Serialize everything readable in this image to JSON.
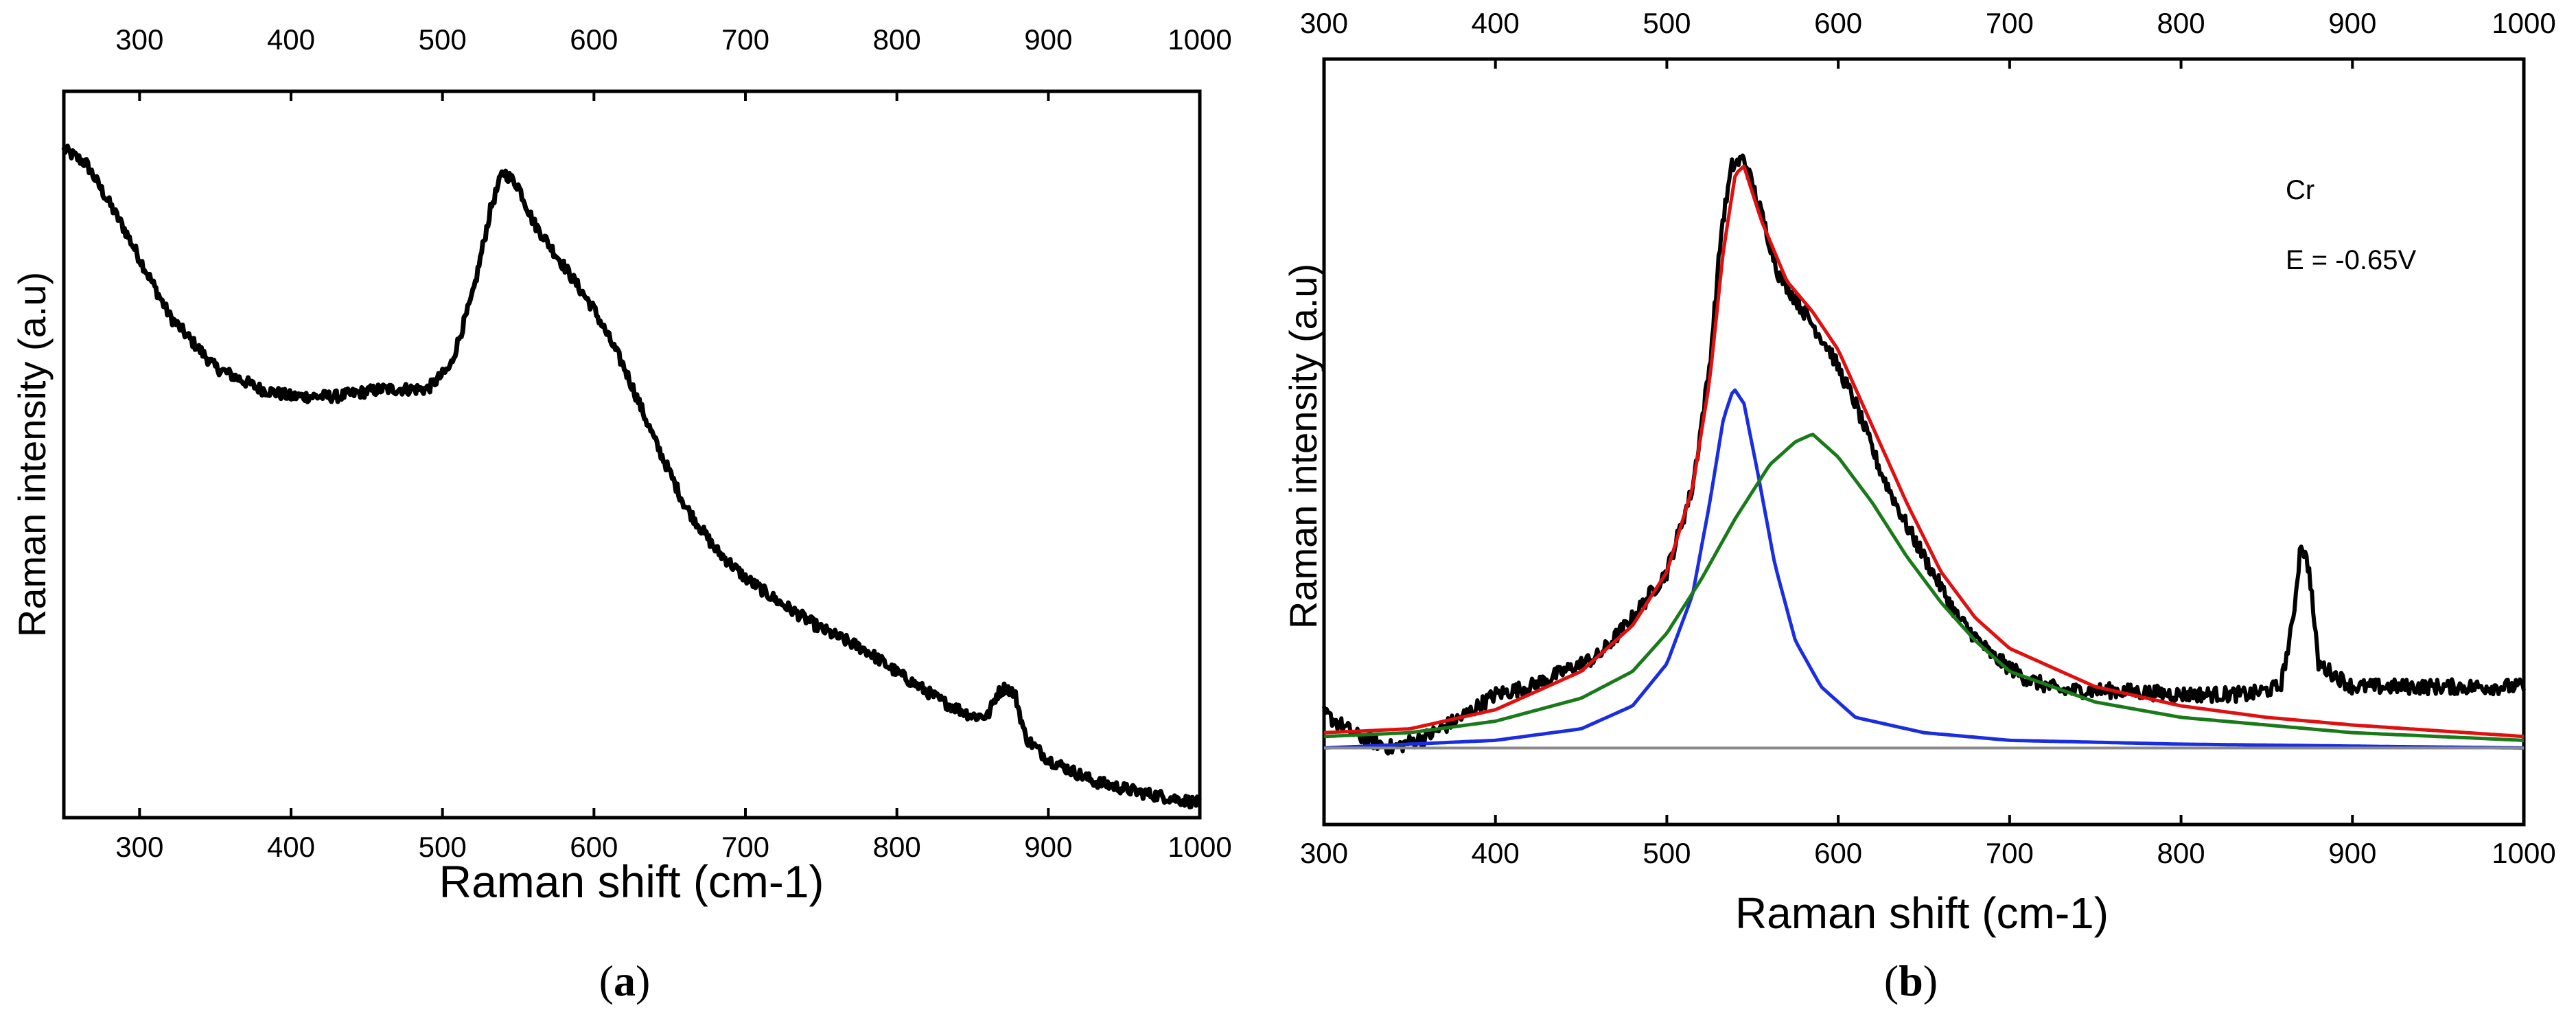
{
  "colors": {
    "spectrum": "#000000",
    "fit_total": "#e01010",
    "peak_540": "#1a2ee0",
    "peak_585": "#1a7a1a",
    "baseline": "#8a8a8a"
  },
  "chart_data": [
    {
      "id": "a",
      "type": "line",
      "panel_label": "a",
      "xlabel": "Raman shift (cm-1)",
      "ylabel": "Raman intensity (a.u)",
      "xlim": [
        250,
        1000
      ],
      "ylim": [
        0,
        1
      ],
      "x_ticks_bottom": [
        300,
        400,
        500,
        600,
        700,
        800,
        900,
        1000
      ],
      "x_ticks_top": [
        300,
        400,
        500,
        600,
        700,
        800,
        900,
        1000
      ],
      "yticks_shown": false,
      "series": [
        {
          "name": "Raman spectrum",
          "color_key": "spectrum",
          "width": 7,
          "noise": 0.008,
          "points": [
            [
              250,
              0.92
            ],
            [
              265,
              0.9
            ],
            [
              290,
              0.81
            ],
            [
              320,
              0.69
            ],
            [
              350,
              0.62
            ],
            [
              380,
              0.59
            ],
            [
              400,
              0.58
            ],
            [
              430,
              0.58
            ],
            [
              460,
              0.59
            ],
            [
              490,
              0.59
            ],
            [
              505,
              0.62
            ],
            [
              520,
              0.72
            ],
            [
              532,
              0.84
            ],
            [
              540,
              0.89
            ],
            [
              550,
              0.87
            ],
            [
              560,
              0.82
            ],
            [
              580,
              0.76
            ],
            [
              600,
              0.7
            ],
            [
              620,
              0.62
            ],
            [
              640,
              0.52
            ],
            [
              660,
              0.43
            ],
            [
              680,
              0.37
            ],
            [
              700,
              0.33
            ],
            [
              720,
              0.3
            ],
            [
              750,
              0.26
            ],
            [
              780,
              0.23
            ],
            [
              800,
              0.2
            ],
            [
              830,
              0.16
            ],
            [
              850,
              0.14
            ],
            [
              860,
              0.14
            ],
            [
              866,
              0.17
            ],
            [
              872,
              0.18
            ],
            [
              878,
              0.17
            ],
            [
              885,
              0.11
            ],
            [
              900,
              0.08
            ],
            [
              930,
              0.05
            ],
            [
              960,
              0.035
            ],
            [
              1000,
              0.02
            ]
          ]
        }
      ]
    },
    {
      "id": "b",
      "type": "line",
      "panel_label": "b",
      "xlabel": "Raman shift (cm-1)",
      "ylabel": "Raman intensity (a.u)",
      "xlim": [
        300,
        1000
      ],
      "ylim": [
        0,
        1
      ],
      "x_ticks_bottom": [
        300,
        400,
        500,
        600,
        700,
        800,
        900,
        1000
      ],
      "x_ticks_top": [
        300,
        400,
        500,
        600,
        700,
        800,
        900,
        1000
      ],
      "yticks_shown": false,
      "annotations": [
        "Cr",
        "E = -0.65V"
      ],
      "series": [
        {
          "name": "Raman spectrum",
          "color_key": "spectrum",
          "width": 6,
          "noise": 0.01,
          "points": [
            [
              300,
              0.145
            ],
            [
              320,
              0.115
            ],
            [
              340,
              0.1
            ],
            [
              360,
              0.115
            ],
            [
              380,
              0.14
            ],
            [
              400,
              0.17
            ],
            [
              420,
              0.18
            ],
            [
              440,
              0.2
            ],
            [
              460,
              0.22
            ],
            [
              480,
              0.27
            ],
            [
              500,
              0.33
            ],
            [
              515,
              0.44
            ],
            [
              525,
              0.6
            ],
            [
              532,
              0.78
            ],
            [
              538,
              0.86
            ],
            [
              545,
              0.87
            ],
            [
              555,
              0.8
            ],
            [
              565,
              0.72
            ],
            [
              580,
              0.67
            ],
            [
              595,
              0.62
            ],
            [
              610,
              0.55
            ],
            [
              625,
              0.46
            ],
            [
              640,
              0.39
            ],
            [
              655,
              0.33
            ],
            [
              670,
              0.27
            ],
            [
              690,
              0.22
            ],
            [
              710,
              0.19
            ],
            [
              730,
              0.175
            ],
            [
              760,
              0.175
            ],
            [
              800,
              0.17
            ],
            [
              840,
              0.17
            ],
            [
              858,
              0.18
            ],
            [
              865,
              0.26
            ],
            [
              870,
              0.37
            ],
            [
              875,
              0.33
            ],
            [
              880,
              0.21
            ],
            [
              900,
              0.18
            ],
            [
              940,
              0.18
            ],
            [
              1000,
              0.18
            ]
          ]
        },
        {
          "name": "Total fit",
          "color_key": "fit_total",
          "width": 5,
          "points": [
            [
              300,
              0.12
            ],
            [
              350,
              0.125
            ],
            [
              400,
              0.15
            ],
            [
              450,
              0.2
            ],
            [
              480,
              0.26
            ],
            [
              500,
              0.33
            ],
            [
              515,
              0.44
            ],
            [
              525,
              0.58
            ],
            [
              533,
              0.75
            ],
            [
              540,
              0.85
            ],
            [
              545,
              0.86
            ],
            [
              555,
              0.79
            ],
            [
              570,
              0.71
            ],
            [
              585,
              0.67
            ],
            [
              600,
              0.62
            ],
            [
              620,
              0.52
            ],
            [
              640,
              0.42
            ],
            [
              660,
              0.33
            ],
            [
              680,
              0.27
            ],
            [
              700,
              0.23
            ],
            [
              750,
              0.18
            ],
            [
              800,
              0.155
            ],
            [
              850,
              0.14
            ],
            [
              900,
              0.13
            ],
            [
              1000,
              0.115
            ]
          ]
        },
        {
          "name": "Lorentzian peak ~540 cm-1",
          "color_key": "peak_540",
          "width": 5,
          "points": [
            [
              300,
              0.1
            ],
            [
              350,
              0.105
            ],
            [
              400,
              0.11
            ],
            [
              450,
              0.125
            ],
            [
              480,
              0.155
            ],
            [
              500,
              0.21
            ],
            [
              515,
              0.3
            ],
            [
              525,
              0.42
            ],
            [
              533,
              0.53
            ],
            [
              539,
              0.57
            ],
            [
              545,
              0.55
            ],
            [
              553,
              0.46
            ],
            [
              563,
              0.34
            ],
            [
              575,
              0.24
            ],
            [
              590,
              0.18
            ],
            [
              610,
              0.14
            ],
            [
              650,
              0.12
            ],
            [
              700,
              0.11
            ],
            [
              800,
              0.105
            ],
            [
              1000,
              0.1
            ]
          ]
        },
        {
          "name": "Lorentzian peak ~585 cm-1",
          "color_key": "peak_585",
          "width": 5,
          "points": [
            [
              300,
              0.115
            ],
            [
              350,
              0.12
            ],
            [
              400,
              0.135
            ],
            [
              450,
              0.165
            ],
            [
              480,
              0.2
            ],
            [
              500,
              0.25
            ],
            [
              520,
              0.32
            ],
            [
              540,
              0.4
            ],
            [
              560,
              0.47
            ],
            [
              575,
              0.5
            ],
            [
              585,
              0.51
            ],
            [
              600,
              0.48
            ],
            [
              620,
              0.42
            ],
            [
              640,
              0.35
            ],
            [
              660,
              0.29
            ],
            [
              680,
              0.24
            ],
            [
              700,
              0.2
            ],
            [
              750,
              0.16
            ],
            [
              800,
              0.14
            ],
            [
              850,
              0.13
            ],
            [
              900,
              0.12
            ],
            [
              1000,
              0.11
            ]
          ]
        },
        {
          "name": "Baseline",
          "color_key": "baseline",
          "width": 4,
          "points": [
            [
              300,
              0.1
            ],
            [
              1000,
              0.1
            ]
          ]
        }
      ]
    }
  ]
}
